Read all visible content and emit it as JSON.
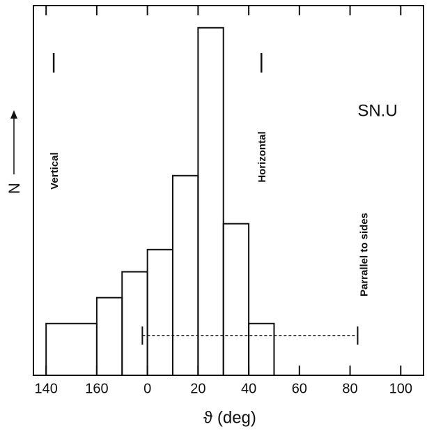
{
  "chart_data": {
    "type": "histogram",
    "x_label": "ϑ (deg)",
    "y_label": "N",
    "annotation": "SN.U",
    "bins": [
      140,
      160,
      170,
      180,
      190,
      200,
      210,
      220,
      230
    ],
    "counts": [
      14,
      21,
      28,
      34,
      54,
      94,
      41,
      14
    ],
    "color": "#111111",
    "xlim": [
      135,
      289
    ],
    "ylim": [
      0,
      100
    ],
    "xticks": [
      140,
      160,
      {
        "value": 180,
        "label": "0"
      },
      {
        "value": 200,
        "label": "20"
      },
      {
        "value": 220,
        "label": "40"
      },
      {
        "value": 240,
        "label": "60"
      },
      {
        "value": 260,
        "label": "80"
      },
      {
        "value": 280,
        "label": "100"
      }
    ],
    "markers": [
      {
        "x": 143,
        "label": "Vertical"
      },
      {
        "x": 225,
        "label": "Horizontal"
      }
    ],
    "range": {
      "x": [
        178,
        263
      ],
      "label": "Parrallel to sides"
    }
  }
}
